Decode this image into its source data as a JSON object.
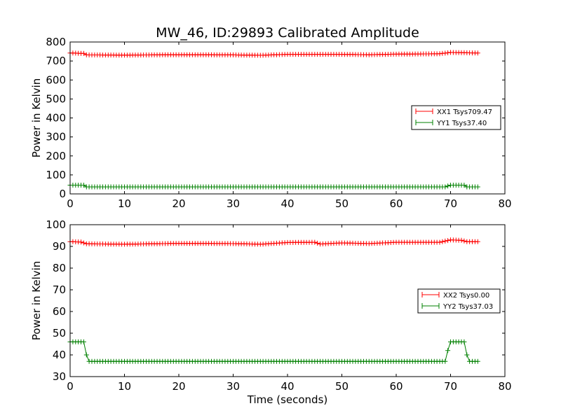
{
  "chart_data": [
    {
      "type": "line",
      "title": "MW_46, ID:29893 Calibrated Amplitude",
      "xlabel": "",
      "ylabel": "Power in Kelvin",
      "xlim": [
        0,
        80
      ],
      "ylim": [
        0,
        800
      ],
      "xticks": [
        "0",
        "10",
        "20",
        "30",
        "40",
        "50",
        "60",
        "70",
        "80"
      ],
      "yticks": [
        "0",
        "100",
        "200",
        "300",
        "400",
        "500",
        "600",
        "700",
        "800"
      ],
      "legend_position": "center-right",
      "grid": false,
      "series": [
        {
          "name": "XX1 Tsys709.47",
          "color": "#ff0000",
          "marker": "plus",
          "points": [
            [
              0,
              742
            ],
            [
              2.5,
              740
            ],
            [
              3,
              732
            ],
            [
              10,
              731
            ],
            [
              20,
              733
            ],
            [
              30,
              732
            ],
            [
              35,
              730
            ],
            [
              40,
              735
            ],
            [
              50,
              735
            ],
            [
              55,
              733
            ],
            [
              60,
              736
            ],
            [
              68,
              738
            ],
            [
              70,
              745
            ],
            [
              72,
              744
            ],
            [
              75,
              742
            ]
          ]
        },
        {
          "name": "YY1 Tsys37.40",
          "color": "#008000",
          "marker": "plus",
          "points": [
            [
              0,
              46
            ],
            [
              2.5,
              46
            ],
            [
              3,
              37
            ],
            [
              69,
              37
            ],
            [
              70,
              46
            ],
            [
              72.5,
              46
            ],
            [
              73,
              37
            ],
            [
              75,
              37
            ]
          ]
        }
      ]
    },
    {
      "type": "line",
      "title": "",
      "xlabel": "Time (seconds)",
      "ylabel": "Power in Kelvin",
      "xlim": [
        0,
        80
      ],
      "ylim": [
        30,
        100
      ],
      "xticks": [
        "0",
        "10",
        "20",
        "30",
        "40",
        "50",
        "60",
        "70",
        "80"
      ],
      "yticks": [
        "30",
        "40",
        "50",
        "60",
        "70",
        "80",
        "90",
        "100"
      ],
      "legend_position": "center-right",
      "grid": false,
      "series": [
        {
          "name": "XX2 Tsys0.00",
          "color": "#ff0000",
          "marker": "plus",
          "points": [
            [
              0,
              92.2
            ],
            [
              2,
              92
            ],
            [
              3,
              91.2
            ],
            [
              10,
              91
            ],
            [
              20,
              91.4
            ],
            [
              30,
              91.3
            ],
            [
              35,
              91
            ],
            [
              40,
              91.8
            ],
            [
              45,
              91.9
            ],
            [
              46,
              91.1
            ],
            [
              50,
              91.6
            ],
            [
              55,
              91.3
            ],
            [
              60,
              91.9
            ],
            [
              68,
              91.9
            ],
            [
              70,
              93
            ],
            [
              72,
              92.8
            ],
            [
              73,
              92.2
            ],
            [
              75,
              92.2
            ]
          ]
        },
        {
          "name": "YY2 Tsys37.03",
          "color": "#008000",
          "marker": "plus",
          "points": [
            [
              0,
              46
            ],
            [
              2.5,
              46
            ],
            [
              2.8,
              43
            ],
            [
              3.2,
              37
            ],
            [
              69,
              37
            ],
            [
              69.6,
              43
            ],
            [
              70,
              46
            ],
            [
              72.5,
              46
            ],
            [
              72.8,
              43
            ],
            [
              73.2,
              37
            ],
            [
              75,
              37
            ]
          ]
        }
      ]
    }
  ]
}
